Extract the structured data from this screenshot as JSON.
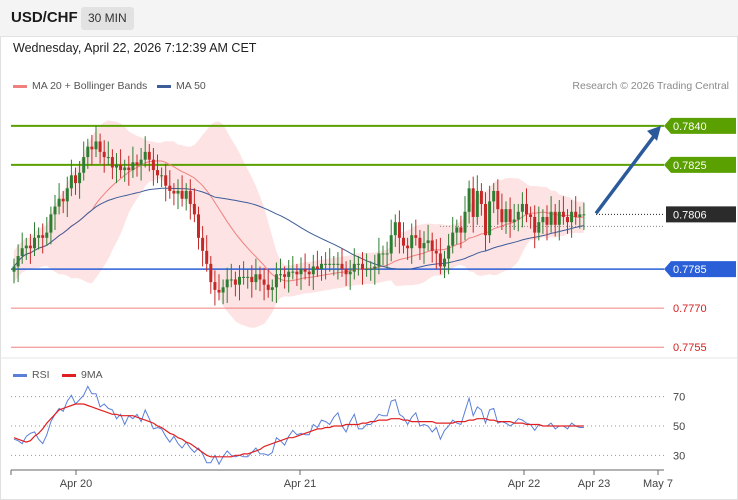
{
  "header": {
    "symbol": "USD/CHF",
    "interval": "30 MIN"
  },
  "datetime": "Wednesday, April 22, 2026 7:12:39 AM CET",
  "credit": "Research © 2026 Trading Central",
  "colors": {
    "resistance": "#5aa000",
    "support": "#2a5fd8",
    "minor_level": "#f08080",
    "candle_up": "#2e7d32",
    "candle_down": "#c62828",
    "bollinger_fill": "#fde3e3",
    "ma20": "#f08080",
    "ma50": "#3e5c9a",
    "rsi": "#5b7fd8",
    "rsi_ma": "#e02020",
    "arrow": "#2a5a9a",
    "current_price_tag": "#2b2b2b"
  },
  "chart_data": [
    {
      "type": "candlestick",
      "title": "USD/CHF",
      "legend": [
        {
          "label": "MA 20 + Bollinger Bands",
          "color": "#f08080"
        },
        {
          "label": "MA 50",
          "color": "#3e5c9a"
        }
      ],
      "legend_position": "top-left",
      "ylim": [
        0.7752,
        0.7848
      ],
      "x_tick_labels": [
        "Apr 20",
        "Apr 21",
        "Apr 22",
        "Apr 23",
        "May 7"
      ],
      "levels": [
        {
          "value": 0.784,
          "label": "0.7840",
          "kind": "resistance"
        },
        {
          "value": 0.7825,
          "label": "0.7825",
          "kind": "resistance"
        },
        {
          "value": 0.7806,
          "label": "0.7806",
          "kind": "current"
        },
        {
          "value": 0.7785,
          "label": "0.7785",
          "kind": "support"
        },
        {
          "value": 0.777,
          "label": "0.7770",
          "kind": "minor"
        },
        {
          "value": 0.7755,
          "label": "0.7755",
          "kind": "minor"
        }
      ],
      "close": [
        0.7786,
        0.779,
        0.7793,
        0.7794,
        0.7793,
        0.7797,
        0.7798,
        0.7797,
        0.7799,
        0.7806,
        0.7809,
        0.7812,
        0.7811,
        0.7816,
        0.7821,
        0.7818,
        0.7822,
        0.7828,
        0.7832,
        0.7831,
        0.7834,
        0.783,
        0.7828,
        0.7828,
        0.7824,
        0.7825,
        0.7823,
        0.7824,
        0.7823,
        0.7826,
        0.7825,
        0.7827,
        0.783,
        0.7827,
        0.7823,
        0.7821,
        0.7821,
        0.7817,
        0.7815,
        0.7814,
        0.7815,
        0.7812,
        0.7815,
        0.781,
        0.7806,
        0.7797,
        0.7792,
        0.7787,
        0.778,
        0.7777,
        0.7776,
        0.7778,
        0.7781,
        0.7781,
        0.7779,
        0.7782,
        0.7782,
        0.7782,
        0.778,
        0.7783,
        0.7781,
        0.7779,
        0.7777,
        0.7778,
        0.7783,
        0.7783,
        0.7782,
        0.7784,
        0.7784,
        0.7783,
        0.7785,
        0.7784,
        0.7783,
        0.7786,
        0.7785,
        0.7787,
        0.7787,
        0.7787,
        0.7787,
        0.7787,
        0.7785,
        0.7783,
        0.7784,
        0.7787,
        0.7787,
        0.7785,
        0.7785,
        0.7785,
        0.7786,
        0.7791,
        0.7791,
        0.7791,
        0.7798,
        0.7803,
        0.7797,
        0.7794,
        0.7793,
        0.7798,
        0.7797,
        0.7793,
        0.7795,
        0.7796,
        0.7792,
        0.7791,
        0.7786,
        0.7789,
        0.7794,
        0.7799,
        0.7801,
        0.7799,
        0.7807,
        0.7816,
        0.7805,
        0.7815,
        0.781,
        0.7798,
        0.7811,
        0.7815,
        0.7808,
        0.7803,
        0.7808,
        0.7803,
        0.7804,
        0.7807,
        0.781,
        0.7806,
        0.7805,
        0.7799,
        0.7803,
        0.7805,
        0.7802,
        0.7807,
        0.7802,
        0.7807,
        0.7805,
        0.7803,
        0.7807,
        0.7805,
        0.7806,
        0.7806
      ],
      "rsi": {
        "legend": [
          {
            "label": "RSI",
            "color": "#5b7fd8"
          },
          {
            "label": "9MA",
            "color": "#e02020"
          }
        ],
        "ylim": [
          20,
          80
        ],
        "y_ticks": [
          70,
          50,
          30
        ],
        "y_tick_labels": [
          "70",
          "50",
          "30"
        ],
        "rsi": [
          41,
          40,
          38,
          43,
          45,
          46,
          41,
          38,
          44,
          53,
          58,
          62,
          60,
          67,
          71,
          65,
          68,
          71,
          77,
          72,
          72,
          63,
          65,
          62,
          61,
          55,
          58,
          51,
          57,
          55,
          58,
          53,
          61,
          55,
          48,
          49,
          48,
          43,
          39,
          43,
          38,
          35,
          39,
          35,
          32,
          35,
          31,
          25,
          25,
          30,
          24,
          29,
          33,
          30,
          29,
          30,
          29,
          29,
          32,
          35,
          31,
          31,
          30,
          32,
          42,
          40,
          37,
          43,
          47,
          44,
          45,
          44,
          44,
          51,
          49,
          54,
          53,
          51,
          56,
          59,
          50,
          46,
          53,
          58,
          48,
          48,
          51,
          51,
          54,
          58,
          57,
          57,
          67,
          68,
          58,
          56,
          51,
          56,
          59,
          50,
          51,
          50,
          46,
          49,
          41,
          47,
          50,
          54,
          52,
          51,
          60,
          69,
          57,
          63,
          61,
          52,
          61,
          62,
          52,
          53,
          52,
          50,
          52,
          55,
          54,
          52,
          51,
          47,
          51,
          50,
          50,
          52,
          48,
          50,
          50,
          48,
          52,
          50,
          49,
          49
        ],
        "ma9": [
          42,
          41,
          40,
          39,
          40,
          43,
          45,
          48,
          52,
          55,
          58,
          61,
          62,
          63,
          64,
          65,
          65,
          65,
          64,
          63,
          62,
          61,
          60,
          59,
          58,
          58,
          57,
          57,
          57,
          57,
          56,
          55,
          54,
          53,
          52,
          50,
          49,
          47,
          45,
          44,
          42,
          41,
          39,
          38,
          36,
          34,
          32,
          30,
          29,
          29,
          29,
          29,
          29,
          29,
          30,
          30,
          31,
          31,
          32,
          33,
          34,
          36,
          37,
          38,
          39,
          40,
          41,
          42,
          42,
          43,
          44,
          45,
          46,
          47,
          48,
          48,
          49,
          49,
          50,
          50,
          50,
          51,
          51,
          51,
          51,
          52,
          52,
          53,
          53,
          54,
          54,
          54,
          55,
          55,
          55,
          54,
          54,
          53,
          53,
          53,
          53,
          53,
          53,
          52,
          52,
          52,
          52,
          52,
          53,
          53,
          53,
          54,
          54,
          55,
          55,
          55,
          54,
          54,
          53,
          53,
          53,
          53,
          52,
          52,
          52,
          51,
          51,
          51,
          51,
          50,
          50,
          50,
          50,
          50,
          50,
          50,
          50,
          50,
          50,
          50
        ]
      }
    }
  ]
}
